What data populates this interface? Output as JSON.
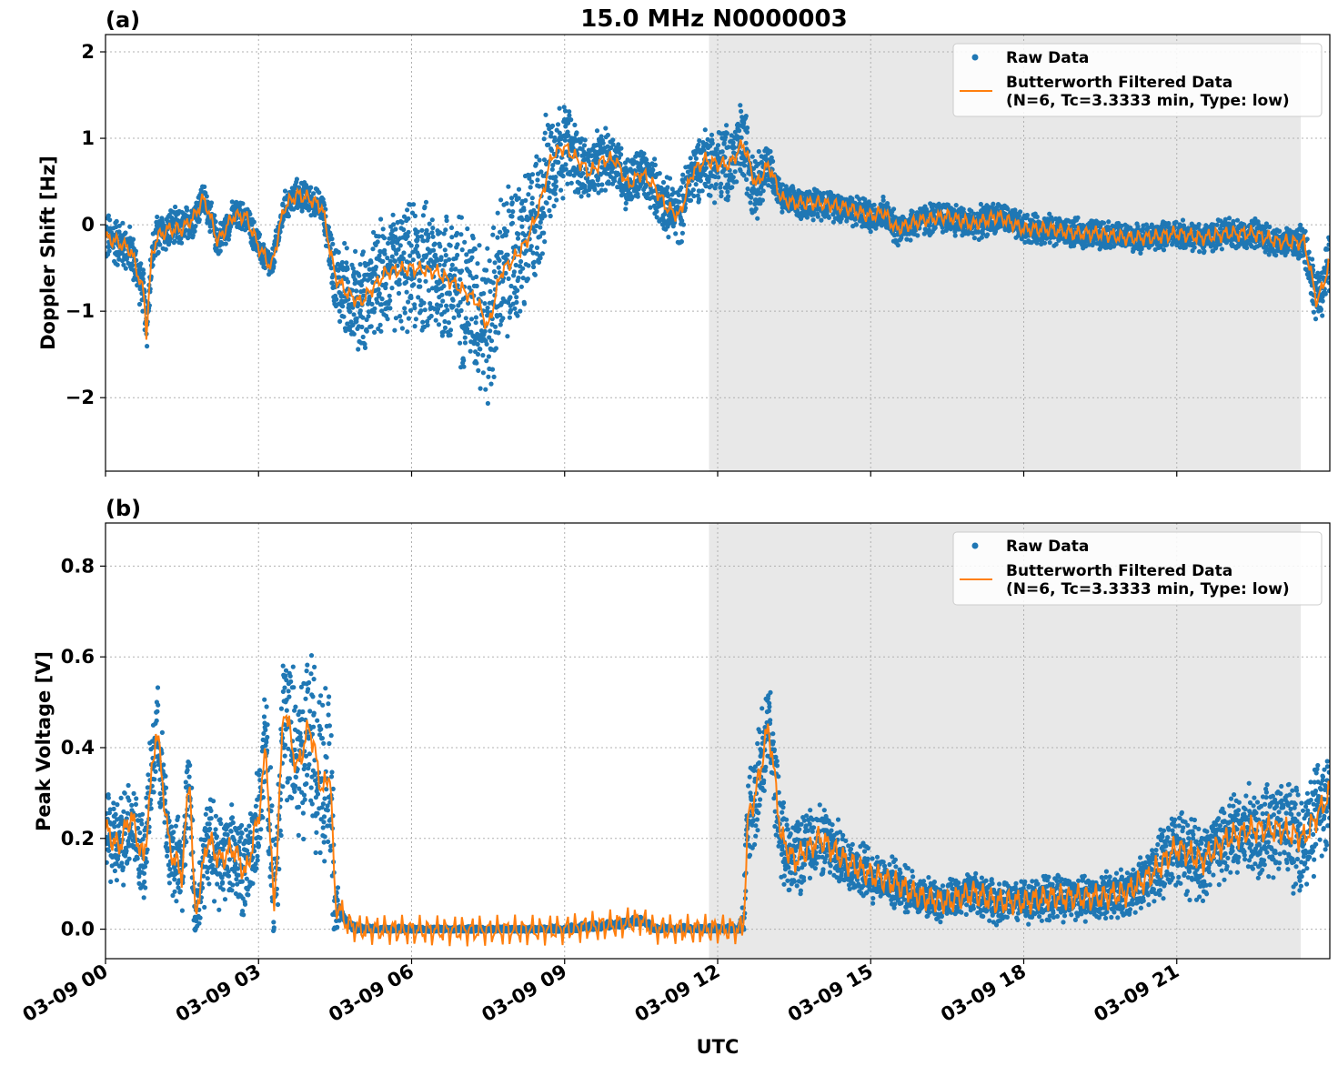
{
  "chart_data": {
    "type": "line",
    "title": "15.0 MHz N0000003",
    "xlabel": "UTC",
    "x_tick_labels": [
      "03-09 00",
      "03-09 03",
      "03-09 06",
      "03-09 09",
      "03-09 12",
      "03-09 15",
      "03-09 18",
      "03-09 21"
    ],
    "x_tick_hours": [
      0,
      3,
      6,
      9,
      12,
      15,
      18,
      21
    ],
    "xlim_hours": [
      0,
      24
    ],
    "shaded_region_hours": [
      11.83,
      23.43
    ],
    "colors": {
      "raw": "#1f77b4",
      "filtered": "#ff7f0e",
      "shade": "#e8e8e8",
      "grid": "#b0b0b0"
    },
    "legend": {
      "raw": "Raw Data",
      "filtered_line1": "Butterworth Filtered Data",
      "filtered_line2": "(N=6, Tc=3.3333 min, Type: low)"
    },
    "panels": [
      {
        "label": "(a)",
        "ylabel": "Doppler Shift [Hz]",
        "ylim": [
          -2.85,
          2.2
        ],
        "y_ticks": [
          2,
          1,
          0,
          -1,
          -2
        ],
        "y_tick_labels": [
          "2",
          "1",
          "0",
          "−1",
          "−2"
        ],
        "legend_position": "top-right",
        "series": [
          {
            "name": "Butterworth Filtered Data",
            "x": [
              0,
              0.25,
              0.5,
              0.75,
              0.8,
              0.9,
              1.0,
              1.25,
              1.5,
              1.75,
              1.9,
              2.0,
              2.2,
              2.5,
              2.75,
              3.0,
              3.25,
              3.5,
              3.75,
              4.0,
              4.25,
              4.5,
              4.75,
              5.0,
              5.5,
              6.0,
              6.5,
              7.0,
              7.3,
              7.5,
              7.75,
              8.0,
              8.25,
              8.5,
              8.75,
              9.0,
              9.25,
              9.5,
              9.75,
              10.0,
              10.25,
              10.5,
              10.75,
              11.0,
              11.25,
              11.5,
              11.75,
              12.0,
              12.25,
              12.5,
              12.75,
              13.0,
              13.25,
              13.5,
              14.0,
              14.5,
              15.0,
              15.25,
              15.5,
              16.0,
              16.5,
              17.0,
              17.5,
              18.0,
              18.5,
              19.0,
              19.5,
              20.0,
              20.5,
              21.0,
              21.5,
              22.0,
              22.5,
              23.0,
              23.5,
              23.75,
              24.0
            ],
            "y": [
              -0.15,
              -0.2,
              -0.3,
              -0.8,
              -1.25,
              -0.4,
              -0.15,
              -0.05,
              -0.05,
              0.1,
              0.3,
              0.2,
              -0.2,
              0.1,
              0.1,
              -0.25,
              -0.5,
              0.2,
              0.35,
              0.3,
              0.2,
              -0.6,
              -0.8,
              -0.9,
              -0.55,
              -0.5,
              -0.55,
              -0.75,
              -0.9,
              -1.2,
              -0.55,
              -0.4,
              -0.2,
              0.2,
              0.8,
              0.9,
              0.75,
              0.6,
              0.75,
              0.75,
              0.45,
              0.6,
              0.45,
              0.2,
              0.1,
              0.6,
              0.75,
              0.7,
              0.7,
              0.95,
              0.45,
              0.7,
              0.3,
              0.25,
              0.25,
              0.2,
              0.1,
              0.15,
              -0.05,
              0.05,
              0.1,
              0.0,
              0.1,
              -0.05,
              -0.05,
              -0.1,
              -0.1,
              -0.15,
              -0.15,
              -0.1,
              -0.15,
              -0.1,
              -0.1,
              -0.2,
              -0.2,
              -0.9,
              -0.45
            ]
          }
        ]
      },
      {
        "label": "(b)",
        "ylabel": "Peak Voltage [V]",
        "ylim": [
          -0.065,
          0.895
        ],
        "y_ticks": [
          0.8,
          0.6,
          0.4,
          0.2,
          0.0
        ],
        "y_tick_labels": [
          "0.8",
          "0.6",
          "0.4",
          "0.2",
          "0.0"
        ],
        "legend_position": "top-right",
        "series": [
          {
            "name": "Butterworth Filtered Data",
            "x": [
              0,
              0.25,
              0.5,
              0.75,
              1.0,
              1.25,
              1.5,
              1.65,
              1.75,
              2.0,
              2.25,
              2.5,
              2.75,
              3.0,
              3.15,
              3.3,
              3.5,
              3.75,
              4.0,
              4.25,
              4.4,
              4.5,
              4.75,
              5.0,
              6.0,
              8.0,
              9.0,
              10.0,
              10.5,
              10.75,
              11.0,
              12.0,
              12.5,
              12.6,
              12.75,
              13.0,
              13.25,
              13.5,
              14.0,
              14.5,
              15.0,
              15.5,
              16.0,
              16.5,
              17.0,
              17.5,
              18.0,
              18.5,
              19.0,
              19.5,
              20.0,
              20.5,
              21.0,
              21.5,
              22.0,
              22.5,
              23.0,
              23.5,
              24.0
            ],
            "y": [
              0.22,
              0.18,
              0.25,
              0.15,
              0.45,
              0.18,
              0.12,
              0.35,
              0.02,
              0.2,
              0.15,
              0.18,
              0.12,
              0.25,
              0.4,
              0.03,
              0.5,
              0.35,
              0.45,
              0.3,
              0.35,
              0.06,
              0.01,
              0.0,
              -0.003,
              -0.003,
              0.0,
              0.01,
              0.02,
              0.0,
              0.0,
              0.0,
              0.0,
              0.25,
              0.3,
              0.45,
              0.2,
              0.15,
              0.2,
              0.15,
              0.12,
              0.1,
              0.07,
              0.06,
              0.08,
              0.06,
              0.06,
              0.07,
              0.07,
              0.07,
              0.08,
              0.12,
              0.18,
              0.15,
              0.2,
              0.22,
              0.22,
              0.2,
              0.3
            ]
          }
        ]
      }
    ]
  }
}
